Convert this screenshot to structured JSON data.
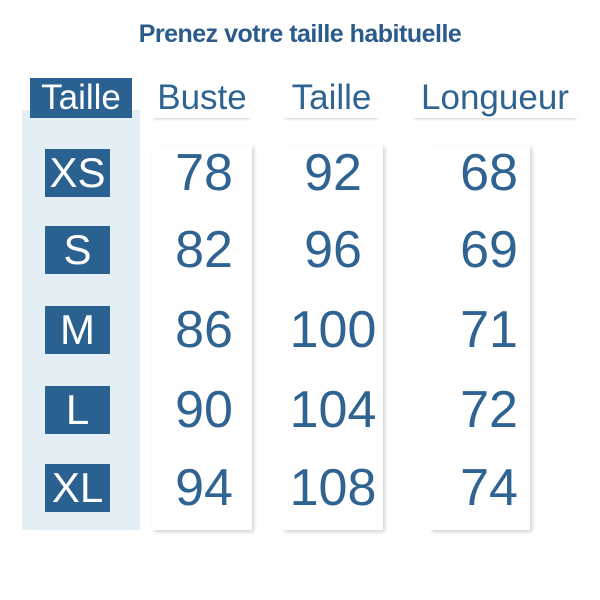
{
  "title": "Prenez votre taille habituelle",
  "table": {
    "headers": [
      "Taille",
      "Buste",
      "Taille",
      "Longueur"
    ],
    "rows": [
      [
        "XS",
        "78",
        "92",
        "68"
      ],
      [
        "S",
        "82",
        "96",
        "69"
      ],
      [
        "M",
        "86",
        "100",
        "71"
      ],
      [
        "L",
        "90",
        "104",
        "72"
      ],
      [
        "XL",
        "94",
        "108",
        "74"
      ]
    ]
  }
}
